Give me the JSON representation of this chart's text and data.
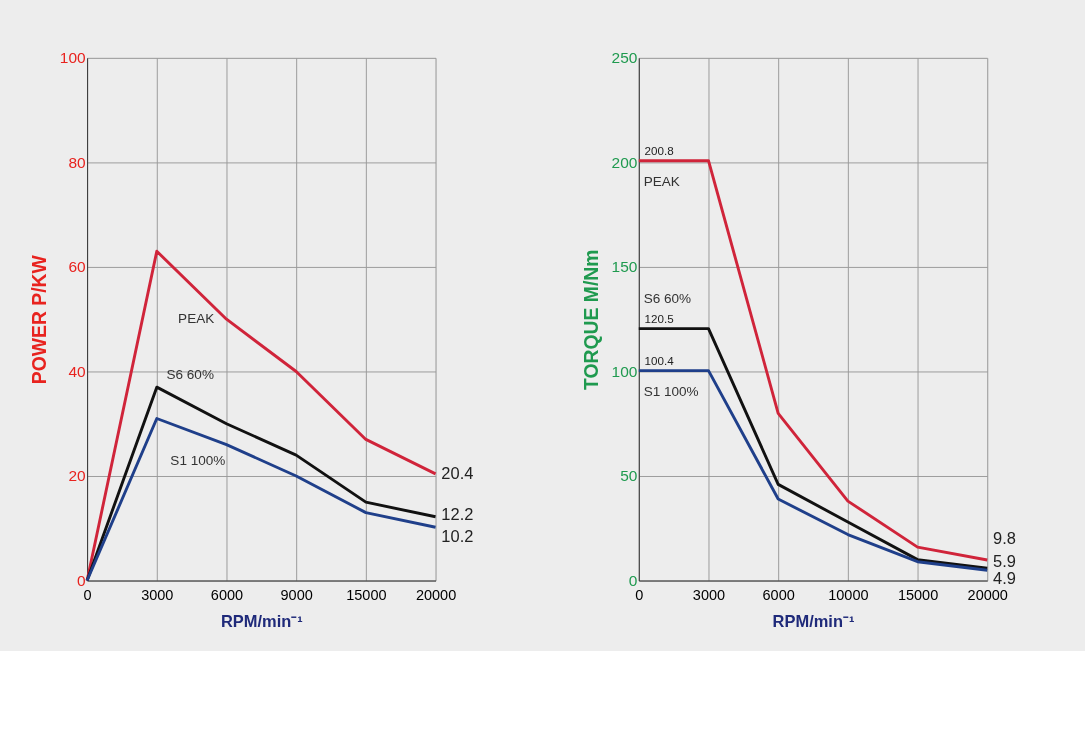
{
  "chart_data": [
    {
      "type": "line",
      "ylabel": "POWER P/KW",
      "xlabel": "RPM/min⁻¹",
      "categories": [
        "0",
        "3000",
        "6000",
        "9000",
        "15000",
        "20000"
      ],
      "ylim": [
        0,
        100
      ],
      "yticks": [
        0,
        20,
        40,
        60,
        80,
        100
      ],
      "grid": true,
      "series": [
        {
          "name": "PEAK",
          "color": "#d0243a",
          "values": [
            0,
            63,
            50,
            40,
            27,
            20.4
          ],
          "value_labels": [
            null,
            null,
            null,
            null,
            null,
            "20.4"
          ]
        },
        {
          "name": "S6 60%",
          "color": "#111111",
          "values": [
            0,
            37,
            30,
            24,
            15,
            12.2
          ],
          "value_labels": [
            null,
            null,
            null,
            null,
            null,
            "12.2"
          ]
        },
        {
          "name": "S1 100%",
          "color": "#1f3f8a",
          "values": [
            0,
            31,
            26,
            20,
            13,
            10.2
          ],
          "value_labels": [
            null,
            null,
            null,
            null,
            null,
            "10.2"
          ]
        }
      ]
    },
    {
      "type": "line",
      "ylabel": "TORQUE M/Nm",
      "xlabel": "RPM/min⁻¹",
      "categories": [
        "0",
        "3000",
        "6000",
        "10000",
        "15000",
        "20000"
      ],
      "ylim": [
        0,
        250
      ],
      "yticks": [
        0,
        50,
        100,
        150,
        200,
        250
      ],
      "grid": true,
      "series": [
        {
          "name": "PEAK",
          "color": "#d0243a",
          "values": [
            200.8,
            200.8,
            80,
            38,
            16,
            9.8
          ],
          "value_labels": [
            "200.8",
            null,
            null,
            null,
            null,
            "9.8"
          ]
        },
        {
          "name": "S6 60%",
          "color": "#111111",
          "values": [
            120.5,
            120.5,
            46,
            28,
            10,
            5.9
          ],
          "value_labels": [
            "120.5",
            null,
            null,
            null,
            null,
            "5.9"
          ]
        },
        {
          "name": "S1 100%",
          "color": "#1f3f8a",
          "values": [
            100.4,
            100.4,
            39,
            22,
            9,
            4.9
          ],
          "value_labels": [
            "100.4",
            null,
            null,
            null,
            null,
            "4.9"
          ]
        }
      ]
    }
  ]
}
